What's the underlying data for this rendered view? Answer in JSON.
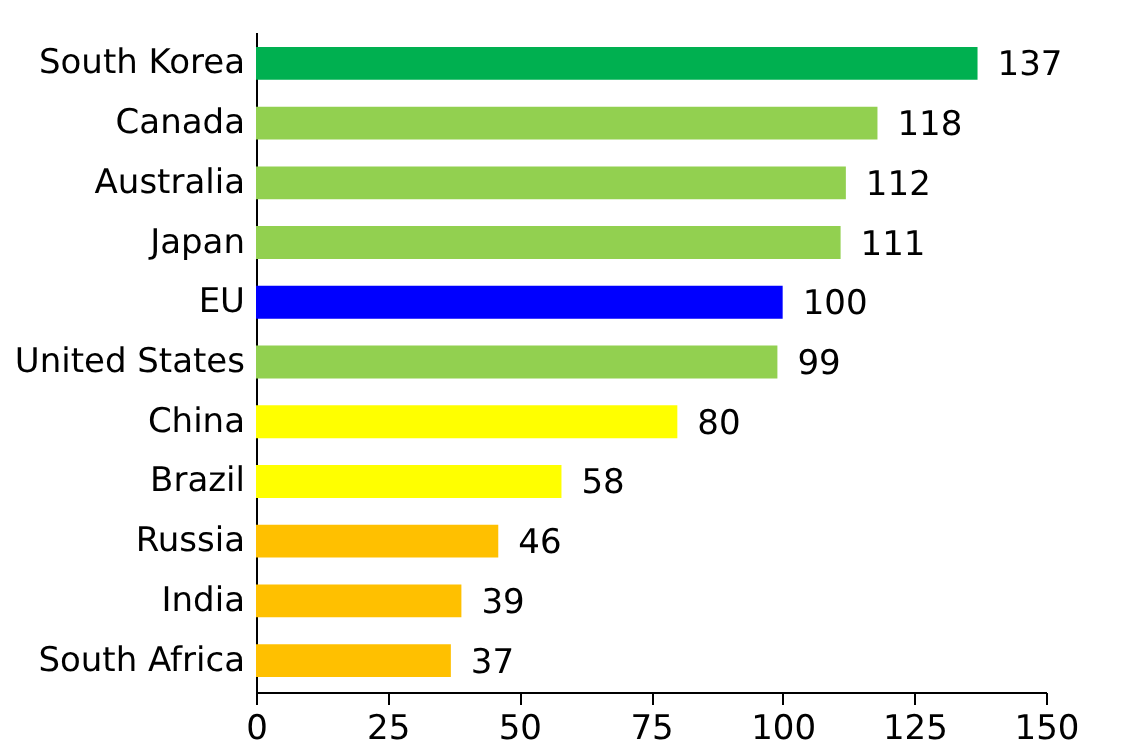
{
  "chart_data": {
    "type": "bar",
    "orientation": "horizontal",
    "categories": [
      "South Korea",
      "Canada",
      "Australia",
      "Japan",
      "EU",
      "United States",
      "China",
      "Brazil",
      "Russia",
      "India",
      "South Africa"
    ],
    "values": [
      137,
      118,
      112,
      111,
      100,
      99,
      80,
      58,
      46,
      39,
      37
    ],
    "colors": [
      "#00b050",
      "#92d050",
      "#92d050",
      "#92d050",
      "#0000ff",
      "#92d050",
      "#ffff00",
      "#ffff00",
      "#ffc000",
      "#ffc000",
      "#ffc000"
    ],
    "xlim": [
      0,
      150
    ],
    "xticks": [
      0,
      25,
      50,
      75,
      100,
      125,
      150
    ],
    "data_labels": true,
    "grid": false
  }
}
